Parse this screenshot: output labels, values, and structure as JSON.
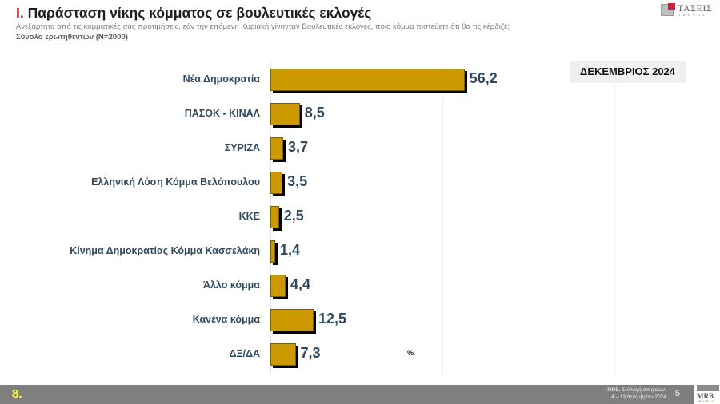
{
  "header": {
    "title_number": "Ι.",
    "title_text": "Παράσταση νίκης κόμματος σε βουλευτικές εκλογές",
    "subtitle": "Ανεξάρτητα από τις κομματικές σας προτιμήσεις, εάν την επόμενη Κυριακή γίνονταν Βουλευτικές εκλογές, ποιο κόμμα πιστεύετε ότι θα τις κέρδιζε;",
    "base": "Σύνολο ερωτηθέντων (N=2000)",
    "logo": {
      "name": "ΤΑΣΕΙΣ",
      "tagline": "TRENDS",
      "accent": "#e0173d"
    }
  },
  "badge": {
    "label": "ΔΕΚΕΜΒΡΙΟΣ 2024"
  },
  "unit_label": "%",
  "footer": {
    "page_marker": "8.",
    "source_line1": "MRB, Συλλογή στοιχείων:",
    "source_line2": "4 – 13 Δεκεμβρίου 2024",
    "slide_number": "5",
    "logo": {
      "name": "MRB",
      "sub": "HELLAS S.A."
    }
  },
  "chart_data": {
    "type": "bar",
    "orientation": "horizontal",
    "title": "Παράσταση νίκης κόμματος σε βουλευτικές εκλογές",
    "subtitle": "Σύνολο ερωτηθέντων (N=2000)",
    "xlabel": "%",
    "ylabel": "",
    "xlim": [
      0,
      100
    ],
    "grid": true,
    "legend": null,
    "bar_color": "#cc9a00",
    "label_color": "#2f4a5e",
    "categories": [
      "Νέα Δημοκρατία",
      "ΠΑΣΟΚ - ΚΙΝΑΛ",
      "ΣΥΡΙΖΑ",
      "Ελληνική Λύση Κόμμα Βελόπουλου",
      "ΚΚΕ",
      "Κίνημα Δημοκρατίας Κόμμα Κασσελάκη",
      "Άλλο κόμμα",
      "Κανένα κόμμα",
      "ΔΞ/ΔΑ"
    ],
    "values": [
      56.2,
      8.5,
      3.7,
      3.5,
      2.5,
      1.4,
      4.4,
      12.5,
      7.3
    ],
    "value_labels": [
      "56,2",
      "8,5",
      "3,7",
      "3,5",
      "2,5",
      "1,4",
      "4,4",
      "12,5",
      "7,3"
    ],
    "series": [
      {
        "name": "ΔΕΚΕΜΒΡΙΟΣ 2024",
        "values": [
          56.2,
          8.5,
          3.7,
          3.5,
          2.5,
          1.4,
          4.4,
          12.5,
          7.3
        ]
      }
    ]
  }
}
